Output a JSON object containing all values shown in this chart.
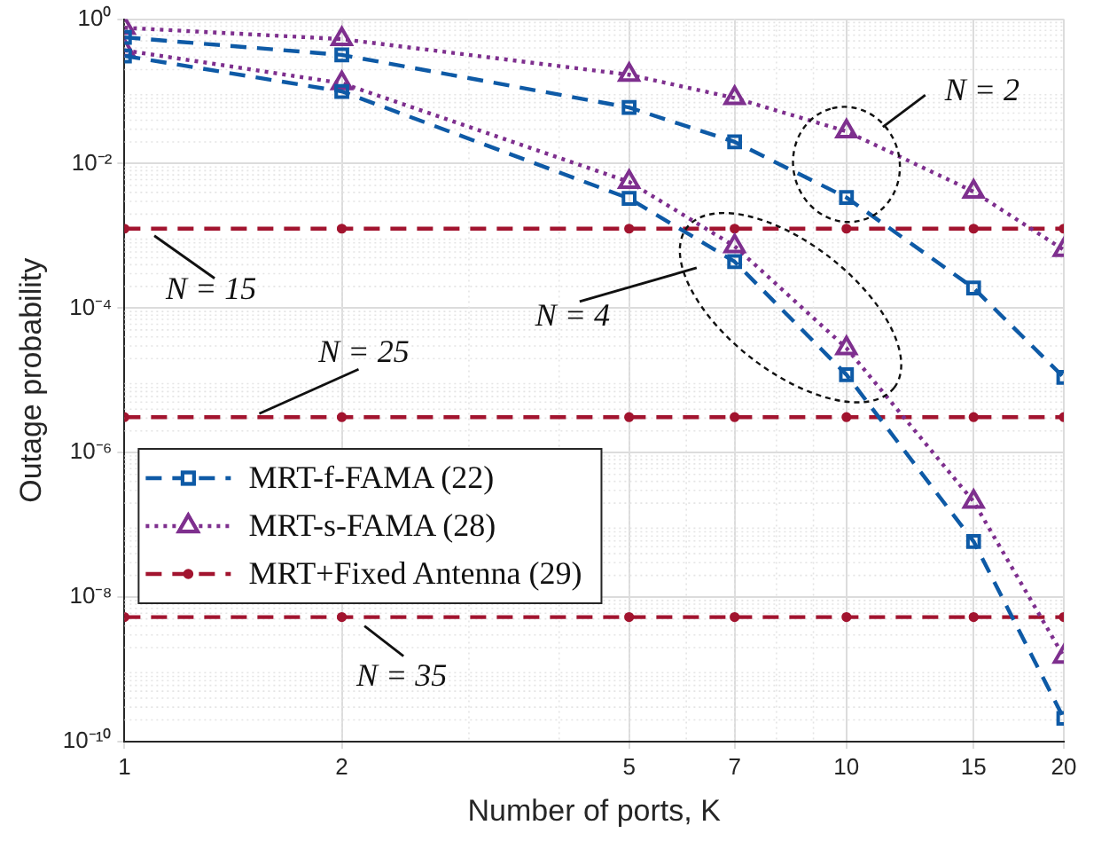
{
  "chart_data": {
    "type": "line",
    "xlabel": "Number of ports, K",
    "ylabel": "Outage probability",
    "log": "xy",
    "x": [
      1,
      2,
      5,
      7,
      10,
      15,
      20
    ],
    "xlim": [
      1,
      20
    ],
    "xticks": [
      1,
      2,
      5,
      7,
      10,
      15,
      20
    ],
    "ylim": [
      1e-10,
      1
    ],
    "yticks": [
      {
        "value": 1e-10,
        "label": "10⁻¹⁰"
      },
      {
        "value": 1e-08,
        "label": "10⁻⁸"
      },
      {
        "value": 1e-06,
        "label": "10⁻⁶"
      },
      {
        "value": 0.0001,
        "label": "10⁻⁴"
      },
      {
        "value": 0.01,
        "label": "10⁻²"
      },
      {
        "value": 1,
        "label": "10⁰"
      }
    ],
    "grid": true,
    "legend": "bottom left",
    "series": [
      {
        "name": "MRT-f-FAMA (22)",
        "color": "#0e5aa6",
        "marker": "square",
        "line_style": "dashed",
        "values": [
          0.56,
          0.32,
          0.06,
          0.02,
          0.0034,
          0.00019,
          1.1e-05
        ]
      },
      {
        "color": "#0e5aa6",
        "marker": "square",
        "line_style": "dashed",
        "values": [
          0.31,
          0.1,
          0.0033,
          0.00044,
          1.2e-05,
          5.9e-08,
          2.1e-10
        ]
      },
      {
        "name": "MRT-s-FAMA (28)",
        "color": "#7e2f8e",
        "marker": "triangle",
        "line_style": "dotted",
        "values": [
          0.76,
          0.53,
          0.17,
          0.081,
          0.028,
          0.0041,
          0.00064
        ]
      },
      {
        "color": "#7e2f8e",
        "marker": "triangle",
        "line_style": "dotted",
        "values": [
          0.37,
          0.13,
          0.0056,
          0.00072,
          2.8e-05,
          2.1e-07,
          1.5e-09
        ]
      },
      {
        "name": "MRT+Fixed Antenna (29)",
        "color": "#a2142f",
        "marker": "circle",
        "line_style": "dashed",
        "values": [
          0.00126,
          0.00126,
          0.00126,
          0.00126,
          0.00126,
          0.00126,
          0.00126
        ]
      },
      {
        "color": "#a2142f",
        "marker": "circle",
        "line_style": "dashed",
        "values": [
          3.1e-06,
          3.1e-06,
          3.1e-06,
          3.1e-06,
          3.1e-06,
          3.1e-06,
          3.1e-06
        ]
      },
      {
        "color": "#a2142f",
        "marker": "circle",
        "line_style": "dashed",
        "values": [
          5.3e-09,
          5.3e-09,
          5.3e-09,
          5.3e-09,
          5.3e-09,
          5.3e-09,
          5.3e-09
        ]
      }
    ],
    "annotations": [
      "N = 2",
      {
        "text": "N = 15",
        "x": 1.1,
        "y": 0.00126
      },
      "N = 4",
      {
        "text": "N = 25",
        "x": 1.52,
        "y": 3.1e-06
      },
      {
        "text": "N = 35",
        "x": 2.15,
        "y": 5.3e-09
      }
    ]
  }
}
